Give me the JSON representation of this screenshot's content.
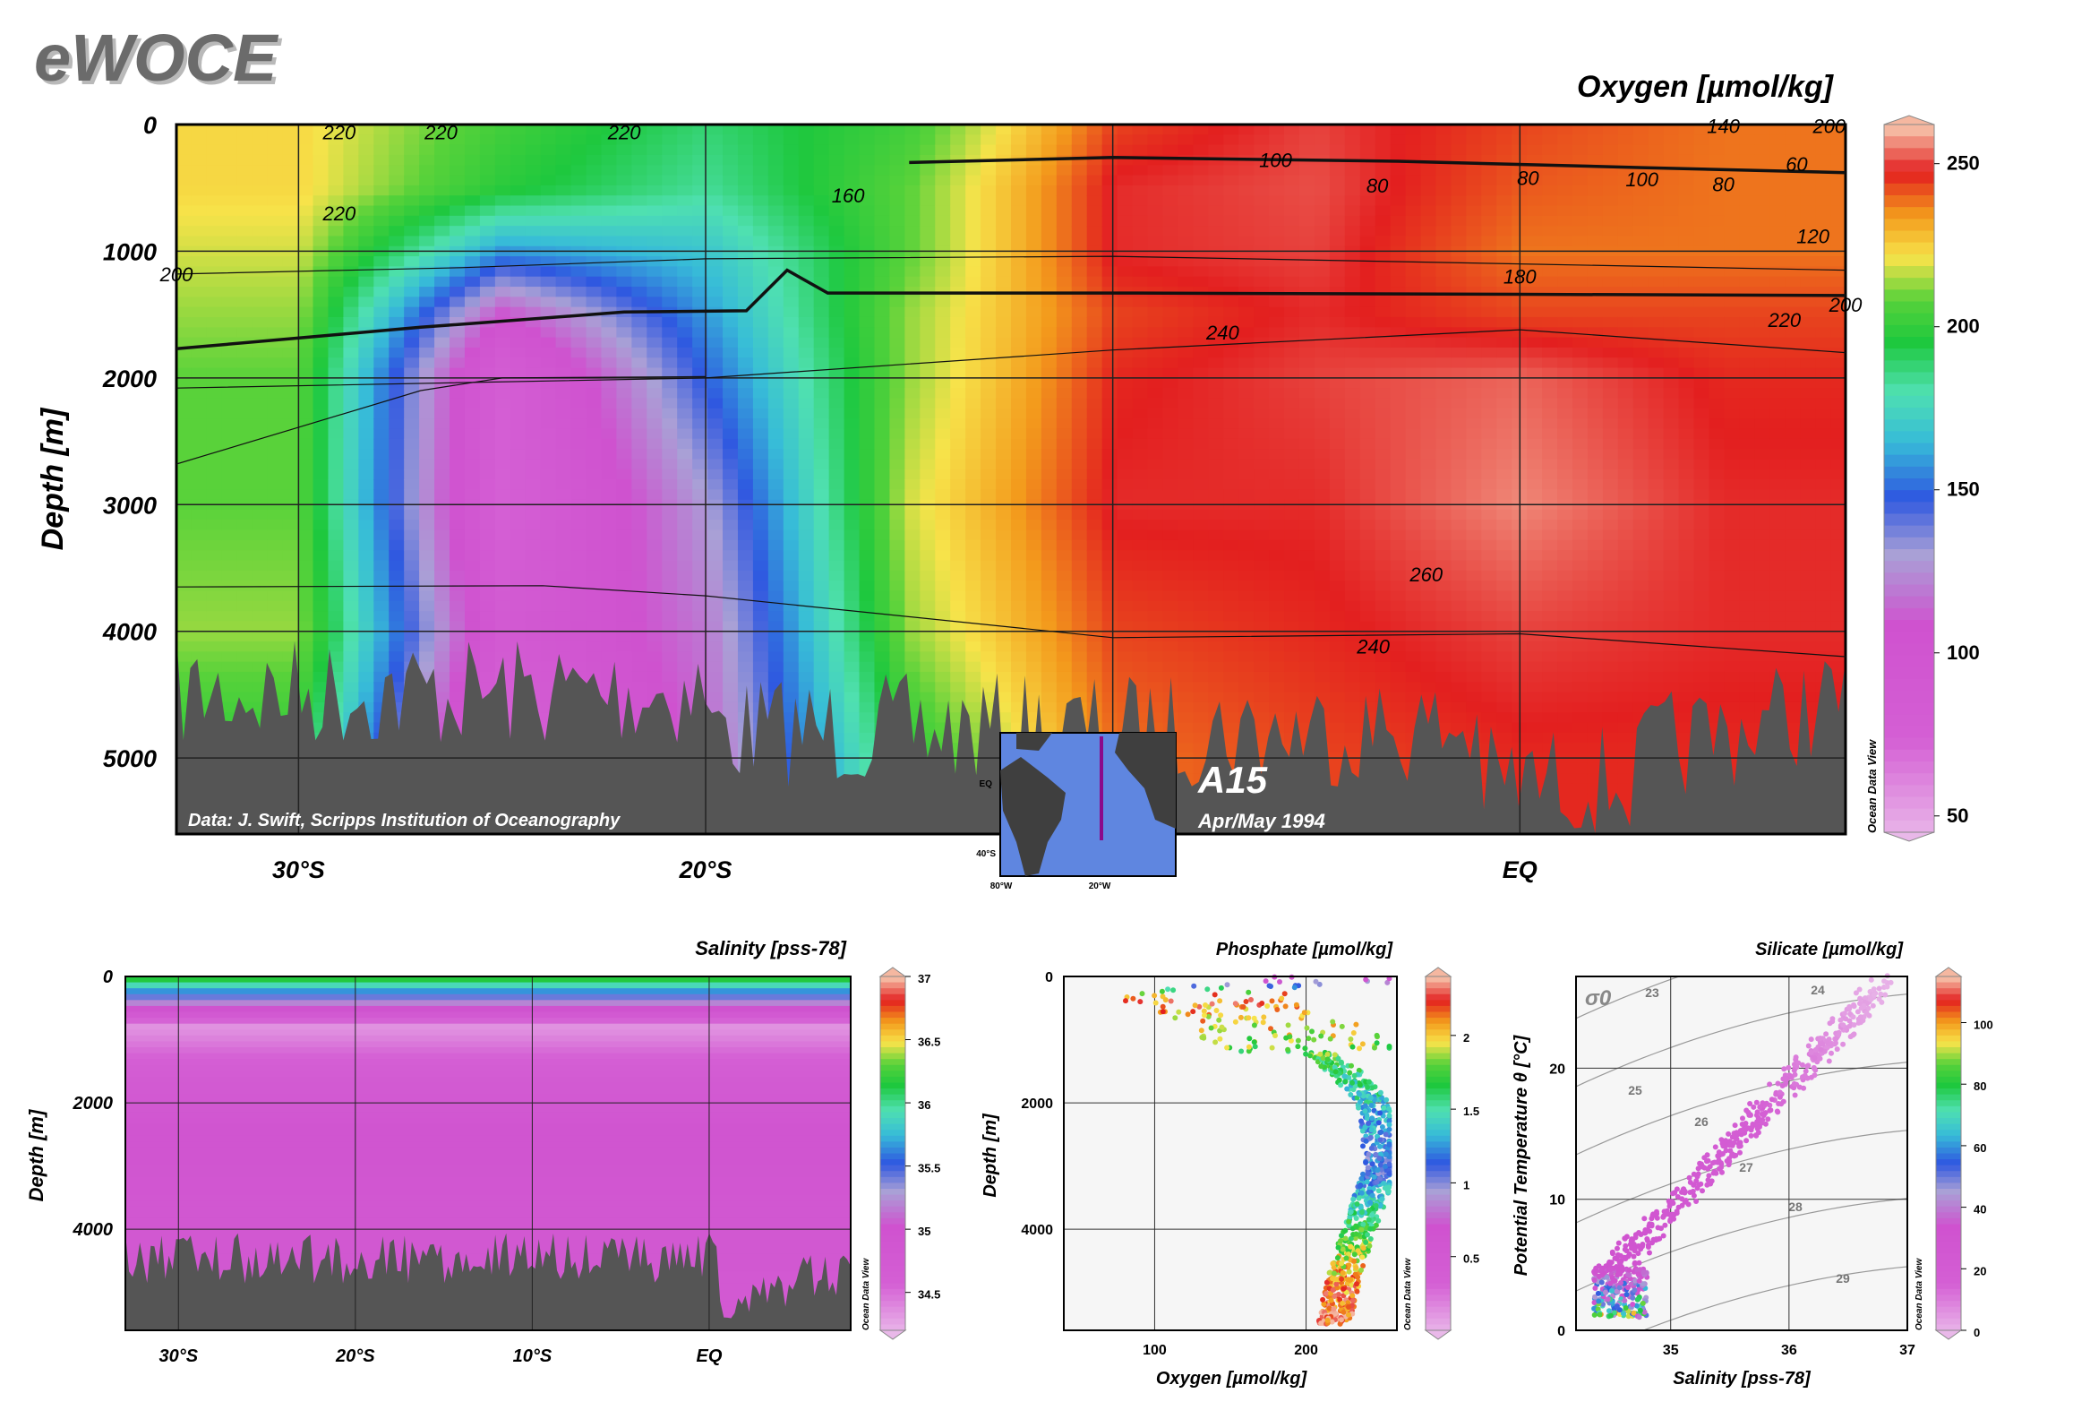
{
  "header": {
    "logo": "eWOCE"
  },
  "colors": {
    "bottom": "#555555",
    "frame": "#000000",
    "grid": "#222222"
  },
  "main_section": {
    "title": "Oxygen [µmol/kg]",
    "ylabel": "Depth [m]",
    "yticks": [
      "0",
      "1000",
      "2000",
      "3000",
      "4000",
      "5000"
    ],
    "xticks": [
      "30°S",
      "20°S",
      "EQ"
    ],
    "credit": "Data: J. Swift, Scripps Institution of Oceanography",
    "section_name": "A15",
    "date": "Apr/May 1994",
    "watermark": "Ocean Data View",
    "colorbar_ticks": [
      "250",
      "200",
      "150",
      "100",
      "50"
    ],
    "contour_labels": [
      "220",
      "220",
      "220",
      "200",
      "220",
      "160",
      "100",
      "80",
      "80",
      "100",
      "80",
      "60",
      "140",
      "200",
      "120",
      "180",
      "220",
      "200",
      "240",
      "260",
      "240"
    ],
    "inset_map": {
      "labels": [
        "EQ",
        "40°S",
        "80°W",
        "20°W"
      ]
    }
  },
  "salinity_panel": {
    "title": "Salinity [pss-78]",
    "ylabel": "Depth [m]",
    "yticks": [
      "0",
      "2000",
      "4000"
    ],
    "xticks": [
      "30°S",
      "20°S",
      "10°S",
      "EQ"
    ],
    "colorbar_ticks": [
      "37",
      "36.5",
      "36",
      "35.5",
      "35",
      "34.5"
    ],
    "watermark": "Ocean Data View"
  },
  "phosphate_panel": {
    "title": "Phosphate [µmol/kg]",
    "xlabel": "Oxygen [µmol/kg]",
    "ylabel": "Depth [m]",
    "xticks": [
      "100",
      "200"
    ],
    "yticks": [
      "0",
      "2000",
      "4000"
    ],
    "colorbar_ticks": [
      "2",
      "1.5",
      "1",
      "0.5"
    ],
    "watermark": "Ocean Data View"
  },
  "silicate_panel": {
    "title": "Silicate [µmol/kg]",
    "xlabel": "Salinity [pss-78]",
    "ylabel": "Potential Temperature θ [°C]",
    "xticks": [
      "35",
      "36",
      "37"
    ],
    "yticks": [
      "0",
      "10",
      "20"
    ],
    "sigma_label": "σ0",
    "isopycnal_labels": [
      "23",
      "24",
      "25",
      "26",
      "27",
      "28",
      "29"
    ],
    "colorbar_ticks": [
      "100",
      "80",
      "60",
      "40",
      "20",
      "0"
    ],
    "watermark": "Ocean Data View"
  },
  "chart_data": [
    {
      "type": "heatmap",
      "title": "Oxygen [µmol/kg]",
      "xlabel": "",
      "ylabel": "Depth [m]",
      "xlim": [
        -33,
        8
      ],
      "ylim": [
        5600,
        0
      ],
      "x_ticks": [
        "30°S",
        "20°S",
        "EQ"
      ],
      "colorbar": {
        "min": 45,
        "max": 262,
        "ticks": [
          250,
          200,
          150,
          100,
          50
        ]
      },
      "profile_lat": [
        -30,
        -25,
        -20,
        -15,
        -10,
        -5,
        0,
        5
      ],
      "profile_depth": [
        0,
        500,
        1000,
        1500,
        2000,
        3000,
        4000,
        5000
      ],
      "oxygen_samples": [
        [
          225,
          205,
          190,
          205,
          245,
          252,
          245,
          240
        ],
        [
          225,
          200,
          185,
          210,
          250,
          253,
          243,
          240
        ],
        [
          220,
          160,
          170,
          210,
          250,
          252,
          240,
          240
        ],
        [
          215,
          110,
          160,
          215,
          245,
          250,
          245,
          245
        ],
        [
          210,
          80,
          150,
          215,
          248,
          252,
          255,
          248
        ],
        [
          210,
          75,
          130,
          220,
          250,
          250,
          258,
          250
        ],
        [
          215,
          90,
          120,
          215,
          245,
          248,
          252,
          250
        ],
        [
          200,
          70,
          115,
          200,
          240,
          245,
          248,
          248
        ]
      ]
    },
    {
      "type": "heatmap",
      "title": "Salinity [pss-78]",
      "ylabel": "Depth [m]",
      "xlim": [
        -33,
        8
      ],
      "ylim": [
        5600,
        0
      ],
      "colorbar": {
        "min": 34.2,
        "max": 37,
        "ticks": [
          37,
          36.5,
          36,
          35.5,
          35,
          34.5
        ]
      },
      "profile_depth": [
        0,
        300,
        800,
        1500,
        2500,
        4000,
        5000
      ],
      "salinity_samples": [
        36.3,
        35.5,
        34.35,
        34.7,
        34.95,
        34.85,
        34.8
      ]
    },
    {
      "type": "scatter",
      "title": "Phosphate [µmol/kg]",
      "xlabel": "Oxygen [µmol/kg]",
      "ylabel": "Depth [m]",
      "xlim": [
        40,
        260
      ],
      "ylim": [
        5600,
        0
      ],
      "colorbar": {
        "min": 0,
        "max": 2.4,
        "ticks": [
          2,
          1.5,
          1,
          0.5
        ]
      },
      "profile_depth": [
        0,
        300,
        800,
        1500,
        2000,
        3000,
        4000,
        4800,
        5500
      ],
      "profile_oxygen": [
        240,
        120,
        180,
        225,
        245,
        250,
        235,
        225,
        218
      ],
      "profile_phosphate": [
        0.3,
        2.2,
        2.0,
        1.6,
        1.4,
        1.1,
        1.7,
        2.1,
        2.3
      ]
    },
    {
      "type": "scatter",
      "title": "Silicate [µmol/kg]",
      "xlabel": "Salinity [pss-78]",
      "ylabel": "Potential Temperature θ [°C]",
      "xlim": [
        34.2,
        37
      ],
      "ylim": [
        0,
        27
      ],
      "colorbar": {
        "min": 0,
        "max": 115,
        "ticks": [
          100,
          80,
          60,
          40,
          20,
          0
        ]
      },
      "ts_salinity": [
        34.45,
        34.6,
        34.9,
        35.1,
        35.4,
        35.7,
        35.95,
        36.2,
        36.5,
        36.8
      ],
      "ts_temperature": [
        4,
        6,
        9,
        11,
        13.5,
        15.5,
        18,
        20,
        23.5,
        26.5
      ],
      "ts_silicate": [
        35,
        25,
        18,
        12,
        8,
        6,
        4,
        3,
        2,
        1
      ]
    }
  ]
}
